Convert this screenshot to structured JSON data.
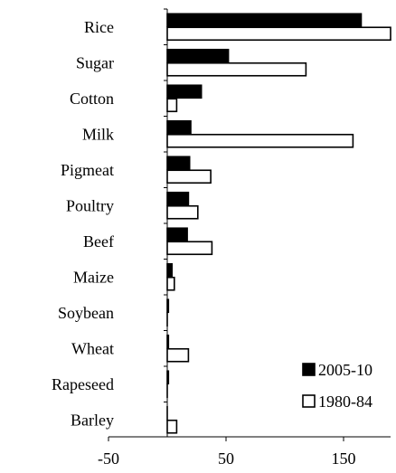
{
  "chart_data": {
    "type": "bar",
    "orientation": "horizontal",
    "title": "",
    "xlabel": "",
    "ylabel": "",
    "categories": [
      "Rice",
      "Sugar",
      "Cotton",
      "Milk",
      "Pigmeat",
      "Poultry",
      "Beef",
      "Maize",
      "Soybean",
      "Wheat",
      "Rapeseed",
      "Barley"
    ],
    "series": [
      {
        "name": "2005-10",
        "fill": "#000000",
        "values": [
          165,
          52,
          29,
          20,
          19,
          18,
          17,
          4,
          1,
          1,
          1,
          0
        ]
      },
      {
        "name": "1980-84",
        "fill": "#ffffff",
        "values": [
          190,
          118,
          8,
          158,
          37,
          26,
          38,
          6,
          0,
          18,
          0,
          8
        ]
      }
    ],
    "xlim": [
      -50,
      190
    ],
    "xticks": [
      -50,
      50,
      150
    ],
    "xtick_labels": [
      "-50",
      "50",
      "150"
    ],
    "grid": false,
    "legend_position": "bottom-right"
  }
}
